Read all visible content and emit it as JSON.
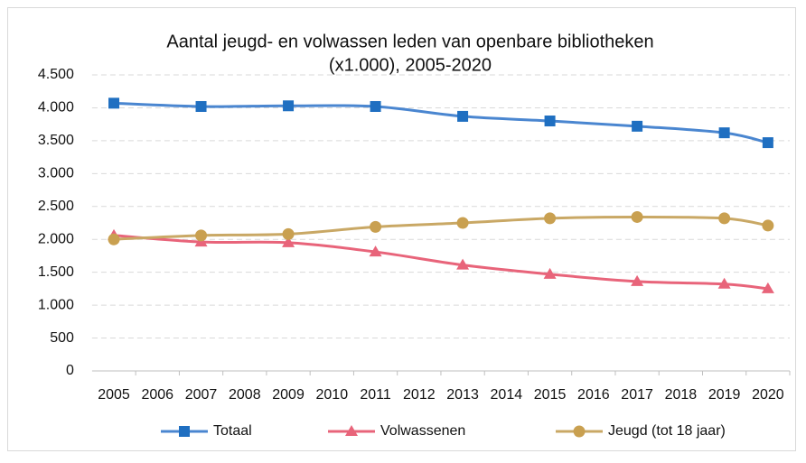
{
  "chart_data": {
    "type": "line",
    "title": [
      "Aantal jeugd- en volwassen leden van openbare bibliotheken",
      "(x1.000), 2005-2020"
    ],
    "x": [
      2005,
      2007,
      2009,
      2011,
      2013,
      2015,
      2017,
      2019,
      2020
    ],
    "xlim": [
      2004.5,
      2020.5
    ],
    "xticks": [
      2005,
      2006,
      2007,
      2008,
      2009,
      2010,
      2011,
      2012,
      2013,
      2014,
      2015,
      2016,
      2017,
      2018,
      2019,
      2020
    ],
    "ylim": [
      0,
      4500
    ],
    "yticks": [
      0,
      500,
      {
        "value": 1000,
        "label": "1.000"
      },
      {
        "value": 1500,
        "label": "1.500"
      },
      {
        "value": 2000,
        "label": "2.000"
      },
      {
        "value": 2500,
        "label": "2.500"
      },
      {
        "value": 3000,
        "label": "3.000"
      },
      {
        "value": 3500,
        "label": "3.500"
      },
      {
        "value": 4000,
        "label": "4.000"
      },
      {
        "value": 4500,
        "label": "4.500"
      }
    ],
    "grid": true,
    "legend": "bottom",
    "series": [
      {
        "name": "Totaal",
        "color": "#4a86d0",
        "marker_color": "#1f6fc1",
        "marker": "square",
        "values": [
          4070,
          4020,
          4030,
          4020,
          3870,
          3800,
          3720,
          3620,
          3470
        ]
      },
      {
        "name": "Volwassenen",
        "color": "#e8647a",
        "marker_color": "#e8647a",
        "marker": "triangle",
        "values": [
          2060,
          1960,
          1950,
          1810,
          1610,
          1470,
          1360,
          1320,
          1250
        ]
      },
      {
        "name": "Jeugd (tot 18 jaar)",
        "color": "#c9a865",
        "marker_color": "#c9a050",
        "marker": "circle",
        "values": [
          2000,
          2060,
          2080,
          2190,
          2250,
          2320,
          2340,
          2320,
          2210
        ]
      }
    ]
  }
}
